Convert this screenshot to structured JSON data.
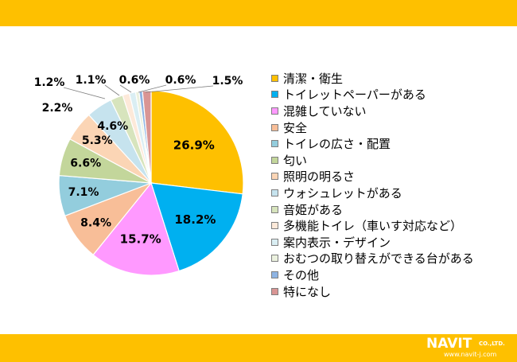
{
  "chart_data": {
    "type": "pie",
    "title": "",
    "start_angle_deg": 0,
    "direction": "clockwise",
    "legend_position": "right",
    "slices": [
      {
        "label": "清潔・衛生",
        "value": 26.9,
        "value_label": "26.9%",
        "color": "#fec000"
      },
      {
        "label": "トイレットペーパーがある",
        "value": 18.2,
        "value_label": "18.2%",
        "color": "#00b0f0"
      },
      {
        "label": "混雑していない",
        "value": 15.7,
        "value_label": "15.7%",
        "color": "#ff99ff"
      },
      {
        "label": "安全",
        "value": 8.4,
        "value_label": "8.4%",
        "color": "#f8be98"
      },
      {
        "label": "トイレの広さ・配置",
        "value": 7.1,
        "value_label": "7.1%",
        "color": "#93cddd"
      },
      {
        "label": "匂い",
        "value": 6.6,
        "value_label": "6.6%",
        "color": "#c3d69b"
      },
      {
        "label": "照明の明るさ",
        "value": 5.3,
        "value_label": "5.3%",
        "color": "#fbd5b5"
      },
      {
        "label": "ウォシュレットがある",
        "value": 4.6,
        "value_label": "4.6%",
        "color": "#c6e3ee"
      },
      {
        "label": "音姫がある",
        "value": 2.2,
        "value_label": "2.2%",
        "color": "#d7e4bd"
      },
      {
        "label": "多機能トイレ（車いす対応など）",
        "value": 1.2,
        "value_label": "1.2%",
        "color": "#fde9d9"
      },
      {
        "label": "案内表示・デザイン",
        "value": 1.1,
        "value_label": "1.1%",
        "color": "#daeef3"
      },
      {
        "label": "おむつの取り替えができる台がある",
        "value": 0.6,
        "value_label": "0.6%",
        "color": "#ebf1de"
      },
      {
        "label": "その他",
        "value": 0.6,
        "value_label": "0.6%",
        "color": "#8eb4e3"
      },
      {
        "label": "特になし",
        "value": 1.5,
        "value_label": "1.5%",
        "color": "#d99594"
      }
    ]
  },
  "branding": {
    "logo_word": "NAVIT",
    "logo_suffix": "CO.,LTD.",
    "logo_url": "www.navit-j.com",
    "band_color": "#fec000"
  }
}
